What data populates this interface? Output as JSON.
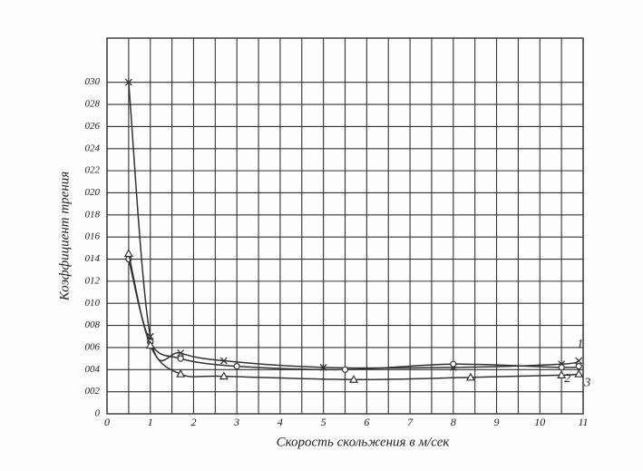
{
  "chart_data": {
    "type": "line",
    "x_label": "Скорость скольжения в м/сек",
    "y_label": "Коэффициент трения",
    "xlim": [
      0,
      11
    ],
    "ylim": [
      0,
      0.034
    ],
    "xticks": [
      0,
      1,
      2,
      3,
      4,
      5,
      6,
      7,
      8,
      9,
      10,
      11
    ],
    "yticks": [
      0,
      {
        "value": 0.002,
        "label": "002"
      },
      {
        "value": 0.004,
        "label": "004"
      },
      {
        "value": 0.006,
        "label": "006"
      },
      {
        "value": 0.008,
        "label": "008"
      },
      {
        "value": 0.01,
        "label": "010"
      },
      {
        "value": 0.012,
        "label": "012"
      },
      {
        "value": 0.014,
        "label": "014"
      },
      {
        "value": 0.016,
        "label": "016"
      },
      {
        "value": 0.018,
        "label": "018"
      },
      {
        "value": 0.02,
        "label": "020"
      },
      {
        "value": 0.022,
        "label": "022"
      },
      {
        "value": 0.024,
        "label": "024"
      },
      {
        "value": 0.026,
        "label": "026"
      },
      {
        "value": 0.028,
        "label": "028"
      },
      {
        "value": 0.03,
        "label": "030"
      }
    ],
    "grid": true,
    "series": [
      {
        "name": "1",
        "color": "#333333",
        "marker": "x",
        "x": [
          0.5,
          1,
          1.7,
          2.7,
          5,
          8,
          10.5,
          10.9
        ],
        "values": [
          0.03,
          0.007,
          0.0055,
          0.0048,
          0.0042,
          0.0042,
          0.0045,
          0.0048
        ]
      },
      {
        "name": "2",
        "color": "#333333",
        "marker": "circle",
        "x": [
          0.5,
          1,
          1.7,
          3,
          5.5,
          8,
          10.5,
          10.9
        ],
        "values": [
          0.014,
          0.0065,
          0.005,
          0.0043,
          0.004,
          0.0045,
          0.0042,
          0.0043
        ]
      },
      {
        "name": "3",
        "color": "#333333",
        "marker": "triangle",
        "x": [
          0.5,
          1,
          1.7,
          2.7,
          5.7,
          8.4,
          10.5,
          10.9
        ],
        "values": [
          0.0145,
          0.0062,
          0.0036,
          0.0034,
          0.0031,
          0.0033,
          0.0035,
          0.0036
        ]
      }
    ]
  }
}
